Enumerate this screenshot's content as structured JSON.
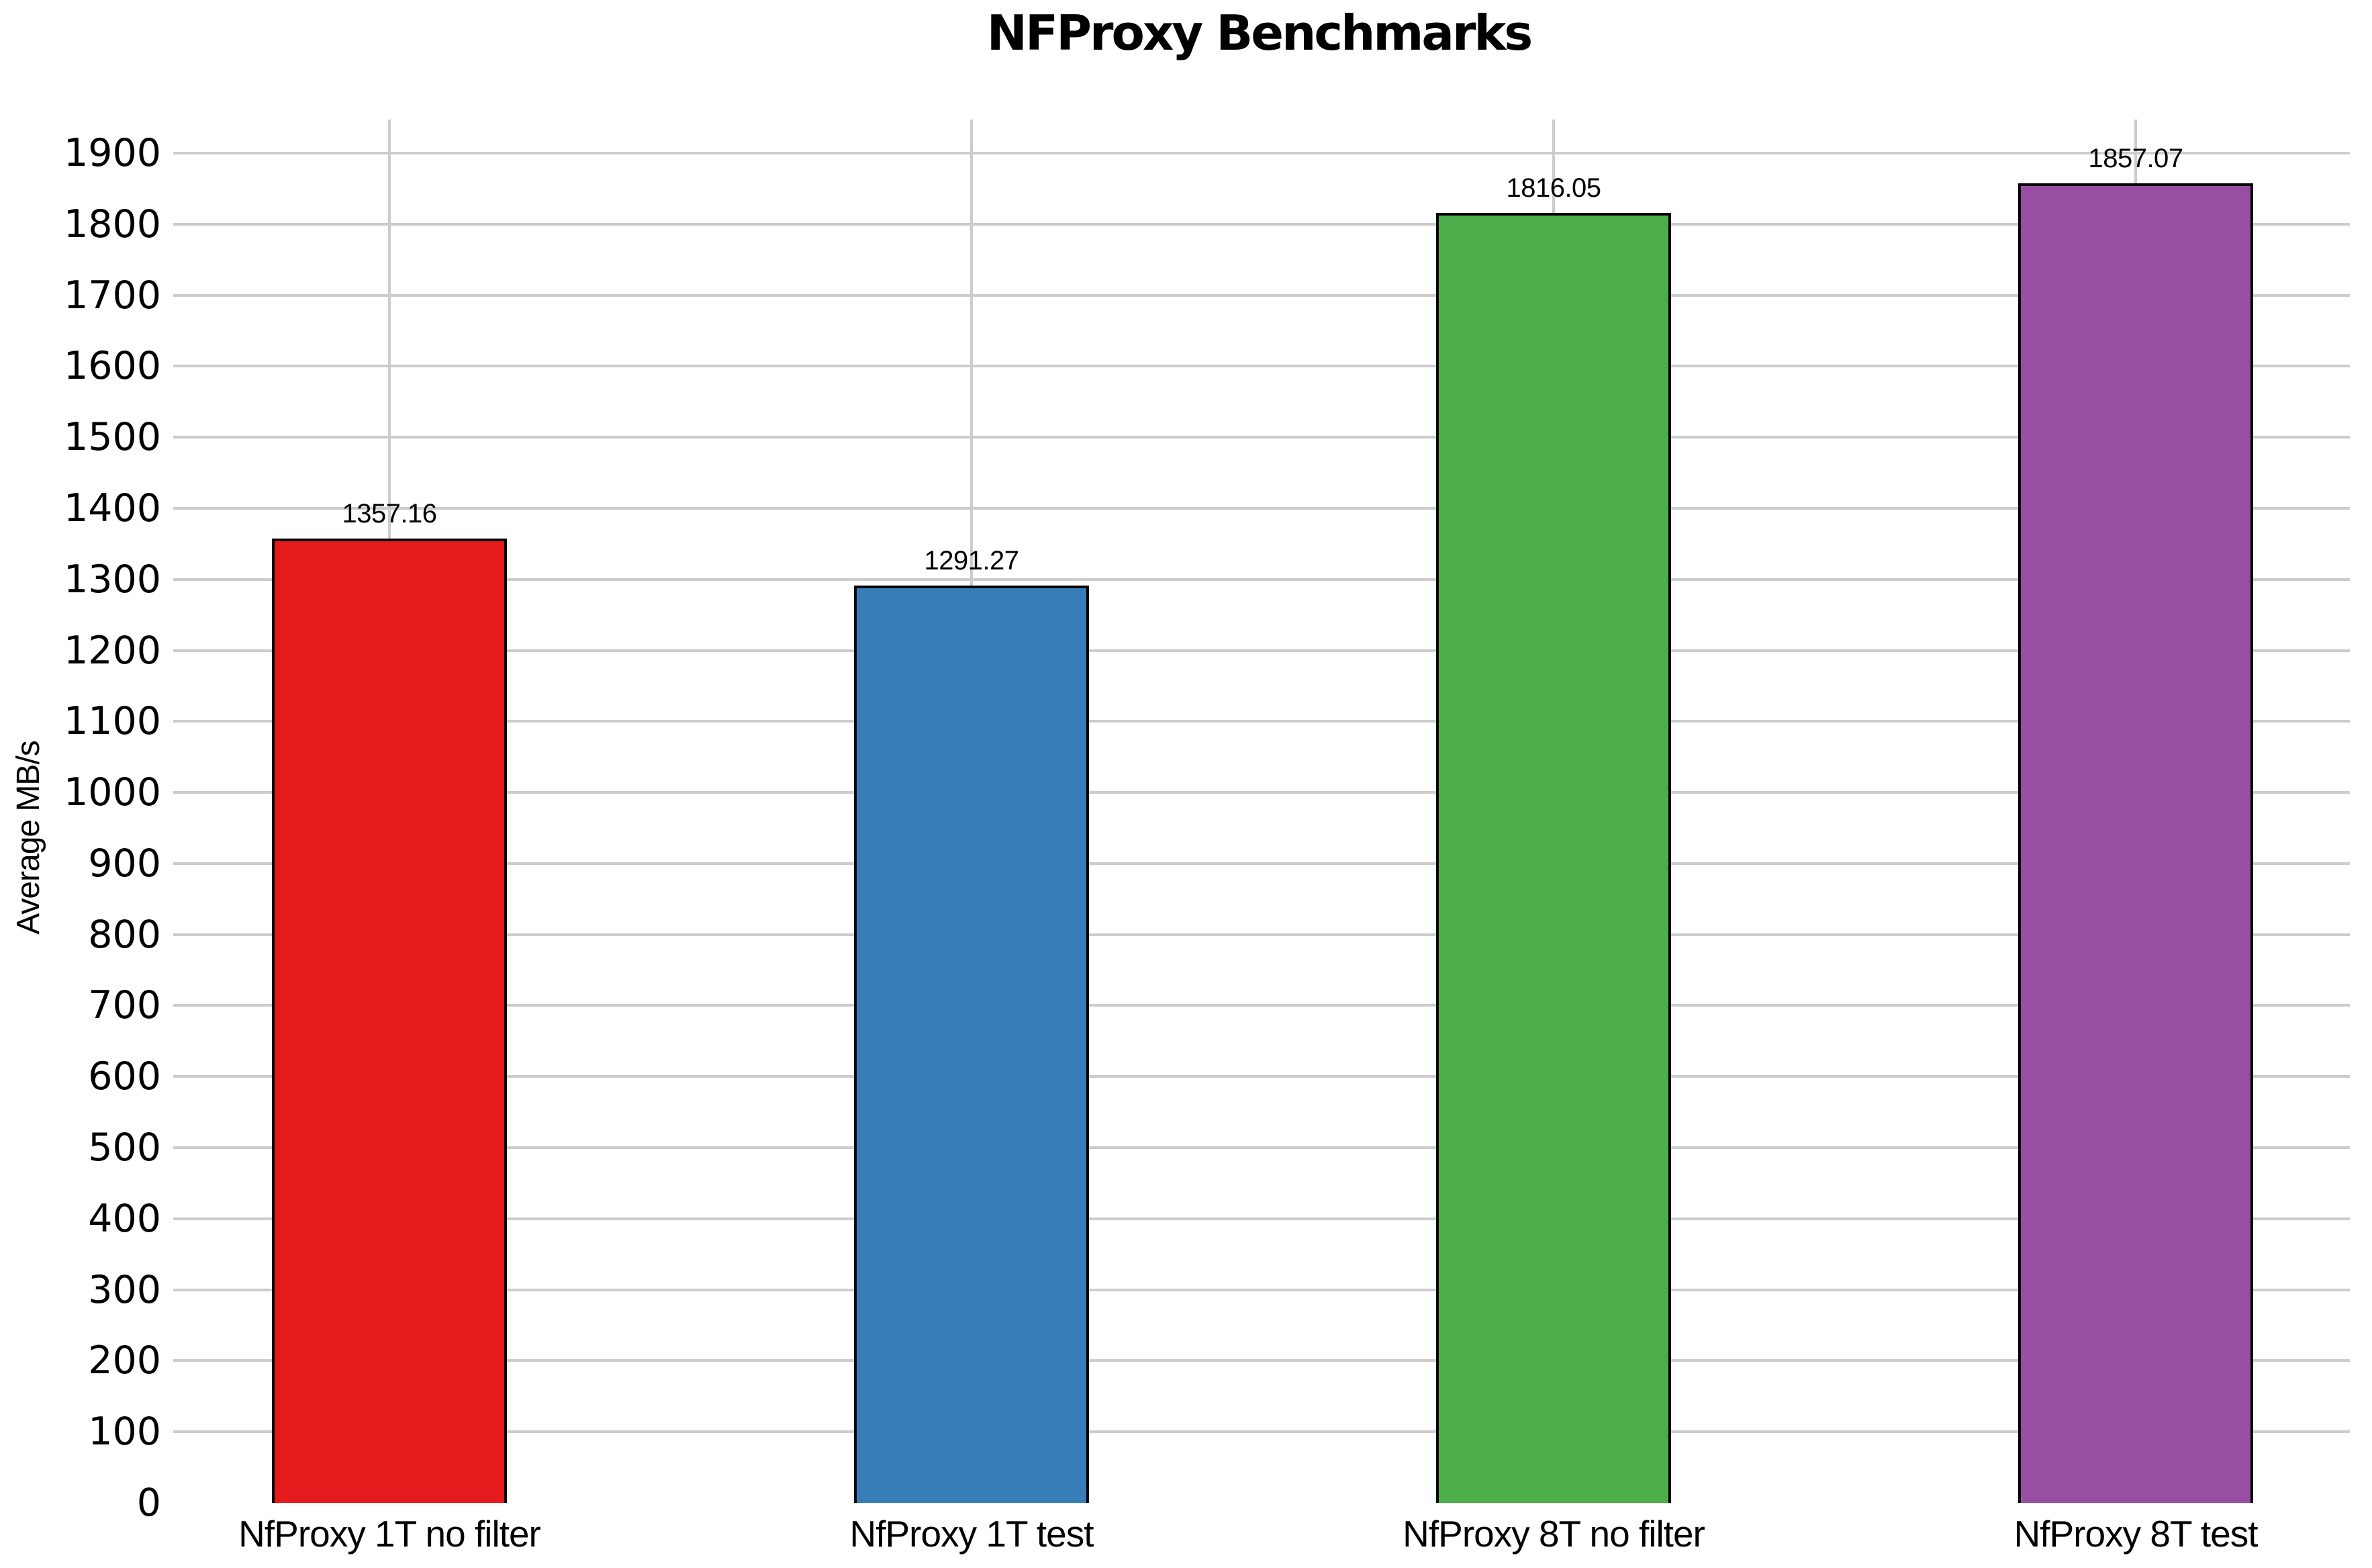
{
  "chart_data": {
    "type": "bar",
    "title": "NFProxy Benchmarks",
    "ylabel": "Average MB/s",
    "xlabel": "",
    "categories": [
      "NfProxy 1T no filter",
      "NfProxy 1T test",
      "NfProxy 8T no filter",
      "NfProxy 8T test"
    ],
    "values": [
      1357.16,
      1291.27,
      1816.05,
      1857.07
    ],
    "value_labels": [
      "1357.16",
      "1291.27",
      "1816.05",
      "1857.07"
    ],
    "bar_colors": [
      "#e41a1c",
      "#377eb8",
      "#4daf4a",
      "#984ea3"
    ],
    "bar_border_color": "#000000",
    "ylim": [
      0,
      1900
    ],
    "ytick_step": 100,
    "ytick_labels": [
      "0",
      "100",
      "200",
      "300",
      "400",
      "500",
      "600",
      "700",
      "800",
      "900",
      "1000",
      "1100",
      "1200",
      "1300",
      "1400",
      "1500",
      "1600",
      "1700",
      "1800",
      "1900"
    ],
    "grid": true,
    "gridline_color": "#cccccc",
    "legend_position": "none",
    "background_color": "#ffffff",
    "text_color": "#000000"
  }
}
